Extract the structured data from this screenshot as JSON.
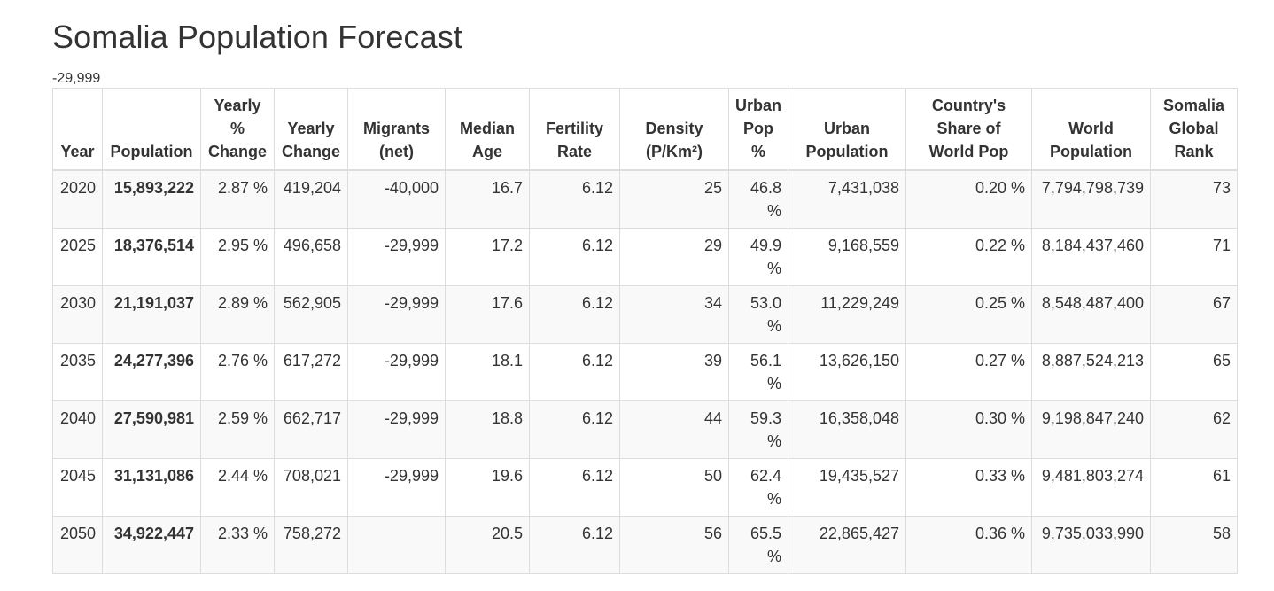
{
  "page": {
    "title": "Somalia Population Forecast",
    "note": "-29,999"
  },
  "table": {
    "headers": [
      [
        "Year"
      ],
      [
        "Population"
      ],
      [
        "Yearly",
        "%",
        "Change"
      ],
      [
        "Yearly",
        "Change"
      ],
      [
        "Migrants",
        "(net)"
      ],
      [
        "Median",
        "Age"
      ],
      [
        "Fertility",
        "Rate"
      ],
      [
        "Density",
        "(P/Km²)"
      ],
      [
        "Urban",
        "Pop",
        "%"
      ],
      [
        "Urban",
        "Population"
      ],
      [
        "Country's",
        "Share of",
        "World Pop"
      ],
      [
        "World",
        "Population"
      ],
      [
        "Somalia",
        "Global",
        "Rank"
      ]
    ],
    "rows": [
      [
        "2020",
        "15,893,222",
        "2.87 %",
        "419,204",
        "-40,000",
        "16.7",
        "6.12",
        "25",
        "46.8 %",
        "7,431,038",
        "0.20 %",
        "7,794,798,739",
        "73"
      ],
      [
        "2025",
        "18,376,514",
        "2.95 %",
        "496,658",
        "-29,999",
        "17.2",
        "6.12",
        "29",
        "49.9 %",
        "9,168,559",
        "0.22 %",
        "8,184,437,460",
        "71"
      ],
      [
        "2030",
        "21,191,037",
        "2.89 %",
        "562,905",
        "-29,999",
        "17.6",
        "6.12",
        "34",
        "53.0 %",
        "11,229,249",
        "0.25 %",
        "8,548,487,400",
        "67"
      ],
      [
        "2035",
        "24,277,396",
        "2.76 %",
        "617,272",
        "-29,999",
        "18.1",
        "6.12",
        "39",
        "56.1 %",
        "13,626,150",
        "0.27 %",
        "8,887,524,213",
        "65"
      ],
      [
        "2040",
        "27,590,981",
        "2.59 %",
        "662,717",
        "-29,999",
        "18.8",
        "6.12",
        "44",
        "59.3 %",
        "16,358,048",
        "0.30 %",
        "9,198,847,240",
        "62"
      ],
      [
        "2045",
        "31,131,086",
        "2.44 %",
        "708,021",
        "-29,999",
        "19.6",
        "6.12",
        "50",
        "62.4 %",
        "19,435,527",
        "0.33 %",
        "9,481,803,274",
        "61"
      ],
      [
        "2050",
        "34,922,447",
        "2.33 %",
        "758,272",
        "",
        "20.5",
        "6.12",
        "56",
        "65.5 %",
        "22,865,427",
        "0.36 %",
        "9,735,033,990",
        "58"
      ]
    ]
  }
}
